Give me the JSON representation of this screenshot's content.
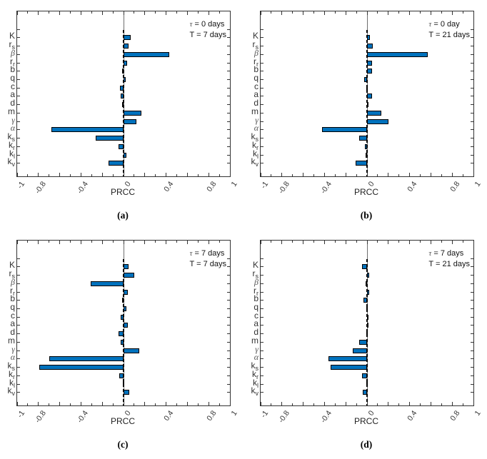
{
  "figure": {
    "background": "#ffffff",
    "description": "2x2 grid of horizontal PRCC sensitivity bar charts"
  },
  "style": {
    "bar_fill": "#0072BD",
    "bar_edge": "#000000",
    "axis_color": "#333333",
    "zero_line_color": "#6e6e6e",
    "dashed_line_color": "#000000",
    "greek_color": "#555555"
  },
  "chart_data": [
    {
      "id": "a",
      "type": "bar",
      "orientation": "horizontal",
      "sublabel": "(a)",
      "annotation": {
        "line1_symbol": "τ",
        "line1_text": "= 0 days",
        "line2": "T = 7 days"
      },
      "xlabel": "PRCC",
      "xlim": [
        -1,
        1
      ],
      "grid": false,
      "zero_reference_line": "dashed",
      "xtick_values": [
        -1,
        -0.8,
        -0.4,
        0,
        0.4,
        0.8,
        1
      ],
      "xtick_labels": [
        "-1",
        "-0.8",
        "-0.4",
        "0",
        "0.4",
        "0.8",
        "1"
      ],
      "minor_tick_step": 0.1,
      "categories": [
        {
          "text": "K",
          "sub": "",
          "greek": false,
          "name": "K"
        },
        {
          "text": "r",
          "sub": "s",
          "greek": false,
          "name": "r_s"
        },
        {
          "text": "β",
          "sub": "",
          "greek": true,
          "name": "beta"
        },
        {
          "text": "r",
          "sub": "r",
          "greek": false,
          "name": "r_r"
        },
        {
          "text": "b",
          "sub": "",
          "greek": false,
          "name": "b"
        },
        {
          "text": "q",
          "sub": "",
          "greek": false,
          "name": "q"
        },
        {
          "text": "c",
          "sub": "",
          "greek": false,
          "name": "c"
        },
        {
          "text": "a",
          "sub": "",
          "greek": false,
          "name": "a"
        },
        {
          "text": "d",
          "sub": "",
          "greek": false,
          "name": "d"
        },
        {
          "text": "m",
          "sub": "",
          "greek": false,
          "name": "m"
        },
        {
          "text": "γ",
          "sub": "",
          "greek": true,
          "name": "gamma"
        },
        {
          "text": "α",
          "sub": "",
          "greek": true,
          "name": "alpha"
        },
        {
          "text": "k",
          "sub": "s",
          "greek": false,
          "name": "k_s"
        },
        {
          "text": "k",
          "sub": "r",
          "greek": false,
          "name": "k_r"
        },
        {
          "text": "k",
          "sub": "l",
          "greek": false,
          "name": "k_l"
        },
        {
          "text": "k",
          "sub": "v",
          "greek": false,
          "name": "k_v"
        }
      ],
      "values": [
        0.07,
        0.045,
        0.43,
        0.034,
        -0.012,
        0.022,
        -0.035,
        -0.028,
        -0.015,
        0.17,
        0.12,
        -0.68,
        -0.26,
        -0.05,
        0.027,
        -0.14
      ]
    },
    {
      "id": "b",
      "type": "bar",
      "orientation": "horizontal",
      "sublabel": "(b)",
      "annotation": {
        "line1_symbol": "τ",
        "line1_text": "= 0 day",
        "line2": "T = 21 days"
      },
      "xlabel": "PRCC",
      "xlim": [
        -1,
        1
      ],
      "grid": false,
      "zero_reference_line": "dashed",
      "xtick_values": [
        -1,
        -0.8,
        -0.4,
        0,
        0.4,
        0.8,
        1
      ],
      "xtick_labels": [
        "-1",
        "-0.8",
        "-0.4",
        "0",
        "0.4",
        "0.8",
        "1"
      ],
      "minor_tick_step": 0.1,
      "categories": [
        {
          "text": "K",
          "sub": "",
          "greek": false,
          "name": "K"
        },
        {
          "text": "r",
          "sub": "s",
          "greek": false,
          "name": "r_s"
        },
        {
          "text": "β",
          "sub": "",
          "greek": true,
          "name": "beta"
        },
        {
          "text": "r",
          "sub": "r",
          "greek": false,
          "name": "r_r"
        },
        {
          "text": "b",
          "sub": "",
          "greek": false,
          "name": "b"
        },
        {
          "text": "q",
          "sub": "",
          "greek": false,
          "name": "q"
        },
        {
          "text": "c",
          "sub": "",
          "greek": false,
          "name": "c"
        },
        {
          "text": "a",
          "sub": "",
          "greek": false,
          "name": "a"
        },
        {
          "text": "d",
          "sub": "",
          "greek": false,
          "name": "d"
        },
        {
          "text": "m",
          "sub": "",
          "greek": false,
          "name": "m"
        },
        {
          "text": "γ",
          "sub": "",
          "greek": true,
          "name": "gamma"
        },
        {
          "text": "α",
          "sub": "",
          "greek": true,
          "name": "alpha"
        },
        {
          "text": "k",
          "sub": "s",
          "greek": false,
          "name": "k_s"
        },
        {
          "text": "k",
          "sub": "r",
          "greek": false,
          "name": "k_r"
        },
        {
          "text": "k",
          "sub": "l",
          "greek": false,
          "name": "k_l"
        },
        {
          "text": "k",
          "sub": "v",
          "greek": false,
          "name": "k_v"
        }
      ],
      "values": [
        0.027,
        0.054,
        0.57,
        0.047,
        0.05,
        -0.027,
        -0.01,
        0.045,
        0.015,
        0.135,
        0.2,
        -0.42,
        -0.072,
        -0.02,
        -0.015,
        -0.11
      ]
    },
    {
      "id": "c",
      "type": "bar",
      "orientation": "horizontal",
      "sublabel": "(c)",
      "annotation": {
        "line1_symbol": "τ",
        "line1_text": "= 7 days",
        "line2": "T = 7 days"
      },
      "xlabel": "PRCC",
      "xlim": [
        -1,
        1
      ],
      "grid": false,
      "zero_reference_line": "dashed",
      "xtick_values": [
        -1,
        -0.8,
        -0.4,
        0,
        0.4,
        0.8,
        1
      ],
      "xtick_labels": [
        "-1",
        "-0.8",
        "-0.4",
        "0",
        "0.4",
        "0.8",
        "1"
      ],
      "minor_tick_step": 0.1,
      "categories": [
        {
          "text": "K",
          "sub": "",
          "greek": false,
          "name": "K"
        },
        {
          "text": "r",
          "sub": "s",
          "greek": false,
          "name": "r_s"
        },
        {
          "text": "β",
          "sub": "",
          "greek": true,
          "name": "beta"
        },
        {
          "text": "r",
          "sub": "r",
          "greek": false,
          "name": "r_r"
        },
        {
          "text": "b",
          "sub": "",
          "greek": false,
          "name": "b"
        },
        {
          "text": "q",
          "sub": "",
          "greek": false,
          "name": "q"
        },
        {
          "text": "c",
          "sub": "",
          "greek": false,
          "name": "c"
        },
        {
          "text": "a",
          "sub": "",
          "greek": false,
          "name": "a"
        },
        {
          "text": "d",
          "sub": "",
          "greek": false,
          "name": "d"
        },
        {
          "text": "m",
          "sub": "",
          "greek": false,
          "name": "m"
        },
        {
          "text": "γ",
          "sub": "",
          "greek": true,
          "name": "gamma"
        },
        {
          "text": "α",
          "sub": "",
          "greek": true,
          "name": "alpha"
        },
        {
          "text": "k",
          "sub": "s",
          "greek": false,
          "name": "k_s"
        },
        {
          "text": "k",
          "sub": "r",
          "greek": false,
          "name": "k_r"
        },
        {
          "text": "k",
          "sub": "l",
          "greek": false,
          "name": "k_l"
        },
        {
          "text": "k",
          "sub": "v",
          "greek": false,
          "name": "k_v"
        }
      ],
      "values": [
        0.045,
        0.1,
        -0.31,
        0.038,
        -0.016,
        0.027,
        -0.03,
        0.043,
        -0.05,
        -0.027,
        0.15,
        -0.7,
        -0.79,
        -0.04,
        -0.008,
        0.056
      ]
    },
    {
      "id": "d",
      "type": "bar",
      "orientation": "horizontal",
      "sublabel": "(d)",
      "annotation": {
        "line1_symbol": "τ",
        "line1_text": "= 7 days",
        "line2": "T = 21 days"
      },
      "xlabel": "PRCC",
      "xlim": [
        -1,
        1
      ],
      "grid": false,
      "zero_reference_line": "dashed",
      "xtick_values": [
        -1,
        -0.8,
        -0.4,
        0,
        0.4,
        0.8,
        1
      ],
      "xtick_labels": [
        "-1",
        "-0.8",
        "-0.4",
        "0",
        "0.4",
        "0.8",
        "1"
      ],
      "minor_tick_step": 0.1,
      "categories": [
        {
          "text": "K",
          "sub": "",
          "greek": false,
          "name": "K"
        },
        {
          "text": "r",
          "sub": "s",
          "greek": false,
          "name": "r_s"
        },
        {
          "text": "β",
          "sub": "",
          "greek": true,
          "name": "beta"
        },
        {
          "text": "r",
          "sub": "r",
          "greek": false,
          "name": "r_r"
        },
        {
          "text": "b",
          "sub": "",
          "greek": false,
          "name": "b"
        },
        {
          "text": "q",
          "sub": "",
          "greek": false,
          "name": "q"
        },
        {
          "text": "c",
          "sub": "",
          "greek": false,
          "name": "c"
        },
        {
          "text": "a",
          "sub": "",
          "greek": false,
          "name": "a"
        },
        {
          "text": "d",
          "sub": "",
          "greek": false,
          "name": "d"
        },
        {
          "text": "m",
          "sub": "",
          "greek": false,
          "name": "m"
        },
        {
          "text": "γ",
          "sub": "",
          "greek": true,
          "name": "gamma"
        },
        {
          "text": "α",
          "sub": "",
          "greek": true,
          "name": "alpha"
        },
        {
          "text": "k",
          "sub": "s",
          "greek": false,
          "name": "k_s"
        },
        {
          "text": "k",
          "sub": "r",
          "greek": false,
          "name": "k_r"
        },
        {
          "text": "k",
          "sub": "l",
          "greek": false,
          "name": "k_l"
        },
        {
          "text": "k",
          "sub": "v",
          "greek": false,
          "name": "k_v"
        }
      ],
      "values": [
        -0.045,
        0.02,
        -0.015,
        0.022,
        -0.036,
        -0.005,
        0.008,
        0.004,
        -0.004,
        -0.074,
        -0.135,
        -0.36,
        -0.34,
        -0.05,
        -0.005,
        -0.04
      ]
    }
  ]
}
